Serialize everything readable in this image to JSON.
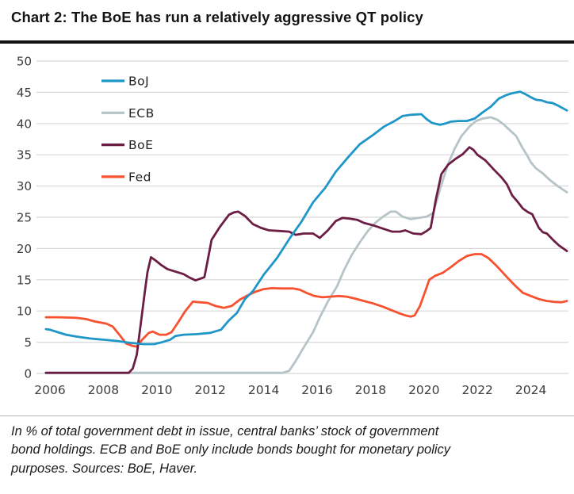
{
  "title": "Chart 2: The BoE has run a relatively aggressive QT policy",
  "footnote": {
    "lines": [
      "In % of total government debt in issue, central banks’ stock of government",
      "bond holdings. ECB and BoE only include bonds bought for monetary policy",
      "purposes. Sources: BoE, Haver."
    ]
  },
  "colors": {
    "title_rule": "#111111",
    "grid": "#d8d8d8",
    "axis_text": "#3d3d3d",
    "legend_text": "#222222",
    "background": "#ffffff"
  },
  "chart_data": {
    "type": "line",
    "title": "Chart 2: The BoE has run a relatively aggressive QT policy",
    "xlabel": "",
    "ylabel": "",
    "ylim": [
      0,
      50
    ],
    "yticks": [
      0,
      5,
      10,
      15,
      20,
      25,
      30,
      35,
      40,
      45,
      50
    ],
    "xticks": [
      2006,
      2008,
      2010,
      2012,
      2014,
      2016,
      2018,
      2020,
      2022,
      2024
    ],
    "x_range": [
      2005.85,
      2025.35
    ],
    "grid": "horizontal",
    "legend_position": "top-left",
    "draw_order": [
      1,
      3,
      2,
      0
    ],
    "series": [
      {
        "name": "BoJ",
        "color": "#1e96c8",
        "points": [
          [
            2005.85,
            7.1
          ],
          [
            2006,
            7.0
          ],
          [
            2006.3,
            6.6
          ],
          [
            2006.6,
            6.2
          ],
          [
            2007,
            5.9
          ],
          [
            2007.5,
            5.6
          ],
          [
            2008,
            5.4
          ],
          [
            2008.5,
            5.2
          ],
          [
            2009,
            4.9
          ],
          [
            2009.5,
            4.7
          ],
          [
            2009.9,
            4.7
          ],
          [
            2010.2,
            5.0
          ],
          [
            2010.5,
            5.4
          ],
          [
            2010.7,
            6.0
          ],
          [
            2011,
            6.2
          ],
          [
            2011.5,
            6.3
          ],
          [
            2012,
            6.5
          ],
          [
            2012.4,
            7.0
          ],
          [
            2012.7,
            8.5
          ],
          [
            2013,
            9.7
          ],
          [
            2013.3,
            11.9
          ],
          [
            2013.6,
            13.2
          ],
          [
            2014,
            15.8
          ],
          [
            2014.5,
            18.5
          ],
          [
            2015,
            21.8
          ],
          [
            2015.4,
            24.2
          ],
          [
            2015.85,
            27.4
          ],
          [
            2016.3,
            29.7
          ],
          [
            2016.7,
            32.3
          ],
          [
            2017.2,
            34.8
          ],
          [
            2017.6,
            36.7
          ],
          [
            2018.1,
            38.2
          ],
          [
            2018.5,
            39.5
          ],
          [
            2018.9,
            40.4
          ],
          [
            2019.2,
            41.2
          ],
          [
            2019.5,
            41.4
          ],
          [
            2019.9,
            41.5
          ],
          [
            2020.1,
            40.7
          ],
          [
            2020.3,
            40.1
          ],
          [
            2020.6,
            39.8
          ],
          [
            2020.8,
            40.0
          ],
          [
            2021,
            40.3
          ],
          [
            2021.3,
            40.4
          ],
          [
            2021.6,
            40.4
          ],
          [
            2021.9,
            40.8
          ],
          [
            2022.2,
            41.8
          ],
          [
            2022.5,
            42.7
          ],
          [
            2022.8,
            44.0
          ],
          [
            2023.1,
            44.6
          ],
          [
            2023.35,
            44.9
          ],
          [
            2023.6,
            45.1
          ],
          [
            2023.8,
            44.7
          ],
          [
            2024,
            44.2
          ],
          [
            2024.2,
            43.8
          ],
          [
            2024.4,
            43.7
          ],
          [
            2024.6,
            43.4
          ],
          [
            2024.8,
            43.3
          ],
          [
            2025,
            42.9
          ],
          [
            2025.35,
            42.1
          ]
        ]
      },
      {
        "name": "ECB",
        "color": "#b6c3c7",
        "points": [
          [
            2005.85,
            0.1
          ],
          [
            2014.7,
            0.1
          ],
          [
            2014.95,
            0.4
          ],
          [
            2015.2,
            2.0
          ],
          [
            2015.5,
            4.2
          ],
          [
            2015.85,
            6.6
          ],
          [
            2016.1,
            9.0
          ],
          [
            2016.4,
            11.5
          ],
          [
            2016.75,
            14.0
          ],
          [
            2017,
            16.5
          ],
          [
            2017.3,
            19.0
          ],
          [
            2017.6,
            21.0
          ],
          [
            2017.9,
            22.8
          ],
          [
            2018.2,
            24.2
          ],
          [
            2018.5,
            25.2
          ],
          [
            2018.75,
            25.9
          ],
          [
            2018.95,
            25.9
          ],
          [
            2019.2,
            25.1
          ],
          [
            2019.5,
            24.7
          ],
          [
            2019.8,
            24.9
          ],
          [
            2020.1,
            25.1
          ],
          [
            2020.35,
            25.7
          ],
          [
            2020.6,
            29.5
          ],
          [
            2020.9,
            33.5
          ],
          [
            2021.15,
            36.0
          ],
          [
            2021.4,
            38.0
          ],
          [
            2021.7,
            39.5
          ],
          [
            2021.95,
            40.4
          ],
          [
            2022.2,
            40.8
          ],
          [
            2022.5,
            41.0
          ],
          [
            2022.75,
            40.6
          ],
          [
            2023,
            39.8
          ],
          [
            2023.2,
            39.0
          ],
          [
            2023.45,
            38.0
          ],
          [
            2023.7,
            36.0
          ],
          [
            2023.85,
            35.0
          ],
          [
            2024,
            33.8
          ],
          [
            2024.2,
            32.8
          ],
          [
            2024.45,
            32.0
          ],
          [
            2024.7,
            31.0
          ],
          [
            2025,
            30.0
          ],
          [
            2025.35,
            29.0
          ]
        ]
      },
      {
        "name": "BoE",
        "color": "#6b1d44",
        "points": [
          [
            2005.85,
            0.1
          ],
          [
            2008.95,
            0.1
          ],
          [
            2009.1,
            0.8
          ],
          [
            2009.25,
            3.0
          ],
          [
            2009.4,
            8.0
          ],
          [
            2009.55,
            13.0
          ],
          [
            2009.65,
            16.2
          ],
          [
            2009.78,
            18.6
          ],
          [
            2009.95,
            18.1
          ],
          [
            2010.15,
            17.4
          ],
          [
            2010.4,
            16.7
          ],
          [
            2010.7,
            16.3
          ],
          [
            2011,
            15.9
          ],
          [
            2011.2,
            15.4
          ],
          [
            2011.45,
            14.9
          ],
          [
            2011.65,
            15.2
          ],
          [
            2011.78,
            15.4
          ],
          [
            2011.9,
            18.0
          ],
          [
            2012.05,
            21.4
          ],
          [
            2012.35,
            23.4
          ],
          [
            2012.7,
            25.4
          ],
          [
            2012.9,
            25.8
          ],
          [
            2013.05,
            25.9
          ],
          [
            2013.3,
            25.2
          ],
          [
            2013.6,
            23.9
          ],
          [
            2013.9,
            23.3
          ],
          [
            2014.2,
            22.9
          ],
          [
            2014.6,
            22.8
          ],
          [
            2014.95,
            22.7
          ],
          [
            2015.2,
            22.2
          ],
          [
            2015.5,
            22.4
          ],
          [
            2015.85,
            22.4
          ],
          [
            2016.1,
            21.7
          ],
          [
            2016.4,
            22.9
          ],
          [
            2016.7,
            24.4
          ],
          [
            2016.95,
            24.9
          ],
          [
            2017.2,
            24.8
          ],
          [
            2017.5,
            24.6
          ],
          [
            2017.75,
            24.1
          ],
          [
            2018.1,
            23.7
          ],
          [
            2018.45,
            23.2
          ],
          [
            2018.8,
            22.7
          ],
          [
            2019.1,
            22.7
          ],
          [
            2019.3,
            22.9
          ],
          [
            2019.6,
            22.4
          ],
          [
            2019.9,
            22.3
          ],
          [
            2020.1,
            22.8
          ],
          [
            2020.25,
            23.3
          ],
          [
            2020.45,
            28.0
          ],
          [
            2020.65,
            31.9
          ],
          [
            2020.9,
            33.4
          ],
          [
            2021.2,
            34.4
          ],
          [
            2021.45,
            35.1
          ],
          [
            2021.7,
            36.2
          ],
          [
            2021.85,
            35.8
          ],
          [
            2022,
            35.0
          ],
          [
            2022.3,
            34.1
          ],
          [
            2022.6,
            32.7
          ],
          [
            2022.9,
            31.4
          ],
          [
            2023.1,
            30.3
          ],
          [
            2023.3,
            28.5
          ],
          [
            2023.5,
            27.5
          ],
          [
            2023.7,
            26.4
          ],
          [
            2023.9,
            25.8
          ],
          [
            2024.05,
            25.5
          ],
          [
            2024.3,
            23.3
          ],
          [
            2024.45,
            22.6
          ],
          [
            2024.6,
            22.4
          ],
          [
            2024.85,
            21.3
          ],
          [
            2025.05,
            20.5
          ],
          [
            2025.35,
            19.6
          ]
        ]
      },
      {
        "name": "Fed",
        "color": "#f85130",
        "points": [
          [
            2005.85,
            9.0
          ],
          [
            2006.3,
            9.0
          ],
          [
            2006.7,
            8.95
          ],
          [
            2007,
            8.9
          ],
          [
            2007.35,
            8.7
          ],
          [
            2007.7,
            8.3
          ],
          [
            2008.1,
            8.0
          ],
          [
            2008.35,
            7.5
          ],
          [
            2008.6,
            6.2
          ],
          [
            2008.85,
            4.8
          ],
          [
            2009.1,
            4.4
          ],
          [
            2009.25,
            4.3
          ],
          [
            2009.45,
            5.4
          ],
          [
            2009.7,
            6.5
          ],
          [
            2009.85,
            6.7
          ],
          [
            2010.1,
            6.2
          ],
          [
            2010.35,
            6.2
          ],
          [
            2010.55,
            6.6
          ],
          [
            2010.8,
            8.2
          ],
          [
            2011.05,
            9.9
          ],
          [
            2011.35,
            11.5
          ],
          [
            2011.6,
            11.4
          ],
          [
            2011.9,
            11.3
          ],
          [
            2012.2,
            10.8
          ],
          [
            2012.5,
            10.5
          ],
          [
            2012.8,
            10.8
          ],
          [
            2013.1,
            11.8
          ],
          [
            2013.4,
            12.5
          ],
          [
            2013.7,
            13.1
          ],
          [
            2014,
            13.5
          ],
          [
            2014.3,
            13.65
          ],
          [
            2014.7,
            13.6
          ],
          [
            2015.1,
            13.6
          ],
          [
            2015.35,
            13.4
          ],
          [
            2015.6,
            12.9
          ],
          [
            2015.9,
            12.4
          ],
          [
            2016.2,
            12.2
          ],
          [
            2016.5,
            12.3
          ],
          [
            2016.8,
            12.4
          ],
          [
            2017.1,
            12.3
          ],
          [
            2017.4,
            12.0
          ],
          [
            2017.75,
            11.6
          ],
          [
            2018.1,
            11.2
          ],
          [
            2018.45,
            10.7
          ],
          [
            2018.8,
            10.1
          ],
          [
            2019.1,
            9.6
          ],
          [
            2019.3,
            9.3
          ],
          [
            2019.5,
            9.1
          ],
          [
            2019.65,
            9.3
          ],
          [
            2019.85,
            10.8
          ],
          [
            2020.05,
            13.2
          ],
          [
            2020.2,
            15.0
          ],
          [
            2020.4,
            15.6
          ],
          [
            2020.7,
            16.1
          ],
          [
            2021,
            17.0
          ],
          [
            2021.3,
            18.0
          ],
          [
            2021.6,
            18.8
          ],
          [
            2021.9,
            19.1
          ],
          [
            2022.15,
            19.1
          ],
          [
            2022.4,
            18.5
          ],
          [
            2022.7,
            17.3
          ],
          [
            2023,
            15.9
          ],
          [
            2023.15,
            15.2
          ],
          [
            2023.4,
            14.1
          ],
          [
            2023.7,
            12.9
          ],
          [
            2024,
            12.4
          ],
          [
            2024.3,
            11.9
          ],
          [
            2024.6,
            11.6
          ],
          [
            2024.9,
            11.45
          ],
          [
            2025.15,
            11.4
          ],
          [
            2025.35,
            11.6
          ]
        ]
      }
    ]
  }
}
